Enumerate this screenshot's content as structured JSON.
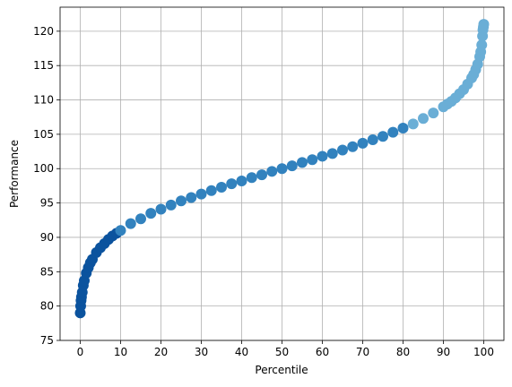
{
  "chart_data": {
    "type": "scatter",
    "x_label": "Percentile",
    "y_label": "Performance",
    "xlim": [
      -5,
      105
    ],
    "ylim": [
      75,
      123.5
    ],
    "xticks": [
      0,
      10,
      20,
      30,
      40,
      50,
      60,
      70,
      80,
      90,
      100
    ],
    "yticks": [
      75,
      80,
      85,
      90,
      95,
      100,
      105,
      110,
      115,
      120
    ],
    "grid": true,
    "series": [
      {
        "color": "#0b539e",
        "x": [
          0,
          0.1,
          0.2,
          0.3,
          0.5,
          0.75,
          1,
          1.5,
          2,
          2.5,
          3,
          4,
          5,
          6,
          7,
          8,
          9
        ],
        "values": [
          79.0,
          80.0,
          80.8,
          81.3,
          82.0,
          83.0,
          83.7,
          84.8,
          85.6,
          86.3,
          86.8,
          87.8,
          88.5,
          89.1,
          89.7,
          90.2,
          90.6
        ]
      },
      {
        "color": "#3282be",
        "x": [
          10,
          12.5,
          15,
          17.5,
          20,
          22.5,
          25,
          27.5,
          30,
          32.5,
          35,
          37.5,
          40,
          42.5,
          45,
          47.5,
          50,
          52.5,
          55,
          57.5,
          60,
          62.5,
          65,
          67.5,
          70,
          72.5,
          75,
          77.5,
          80
        ],
        "values": [
          91.0,
          92.0,
          92.7,
          93.5,
          94.1,
          94.7,
          95.3,
          95.8,
          96.3,
          96.8,
          97.3,
          97.8,
          98.2,
          98.7,
          99.1,
          99.6,
          100.0,
          100.4,
          100.9,
          101.3,
          101.8,
          102.2,
          102.7,
          103.2,
          103.7,
          104.2,
          104.7,
          105.3,
          105.9
        ]
      },
      {
        "color": "#6aaed6",
        "x": [
          82.5,
          85,
          87.5,
          90,
          91,
          92,
          93,
          94,
          95,
          96,
          97,
          97.5,
          98,
          98.5,
          99,
          99.25,
          99.5,
          99.7,
          99.8,
          99.9,
          100
        ],
        "values": [
          106.5,
          107.3,
          108.1,
          109.0,
          109.4,
          109.8,
          110.3,
          110.9,
          111.5,
          112.3,
          113.2,
          113.7,
          114.4,
          115.2,
          116.3,
          117.0,
          118.0,
          119.3,
          120.2,
          120.6,
          121.0
        ]
      }
    ]
  }
}
